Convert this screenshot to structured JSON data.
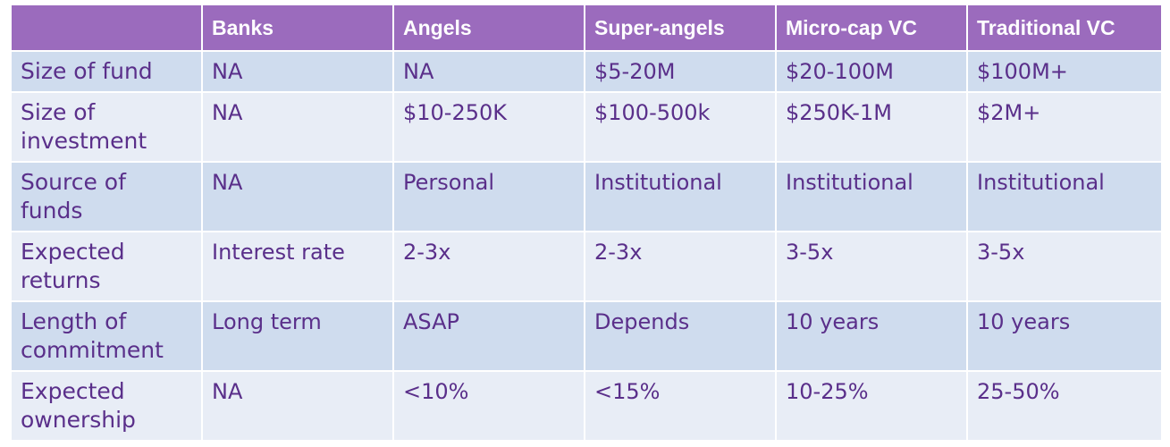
{
  "table": {
    "columns": [
      "",
      "Banks",
      "Angels",
      "Super-angels",
      "Micro-cap VC",
      "Traditional VC"
    ],
    "rows": [
      {
        "label": "Size of fund",
        "cells": [
          "NA",
          "NA",
          "$5-20M",
          "$20-100M",
          "$100M+"
        ]
      },
      {
        "label": "Size of investment",
        "cells": [
          "NA",
          "$10-250K",
          "$100-500k",
          "$250K-1M",
          "$2M+"
        ]
      },
      {
        "label": "Source of funds",
        "cells": [
          "NA",
          "Personal",
          "Institutional",
          "Institutional",
          "Institutional"
        ]
      },
      {
        "label": "Expected returns",
        "cells": [
          "Interest rate",
          "2-3x",
          "2-3x",
          "3-5x",
          "3-5x"
        ]
      },
      {
        "label": "Length of commitment",
        "cells": [
          "Long term",
          "ASAP",
          "Depends",
          "10 years",
          "10 years"
        ]
      },
      {
        "label": "Expected ownership",
        "cells": [
          "NA",
          "<10%",
          "<15%",
          "10-25%",
          "25-50%"
        ]
      }
    ]
  },
  "colors": {
    "header_bg": "#9b6bbd",
    "header_text": "#ffffff",
    "row_dark": "#cfdcee",
    "row_light": "#e8edf6",
    "cell_text": "#5a2f8a"
  }
}
